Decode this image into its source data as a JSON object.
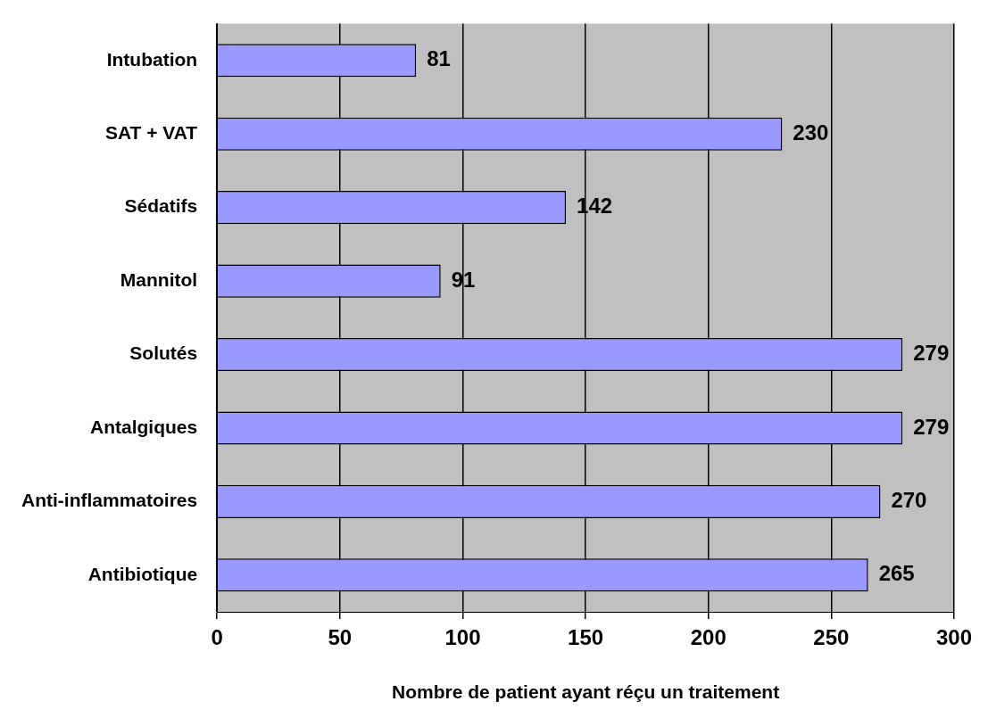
{
  "chart_data": {
    "type": "bar",
    "orientation": "horizontal",
    "xlabel": "Nombre de patient ayant réçu un traitement",
    "categories": [
      "Intubation",
      "SAT + VAT",
      "Sédatifs",
      "Mannitol",
      "Solutés",
      "Antalgiques",
      "Anti-inflammatoires",
      "Antibiotique"
    ],
    "values": [
      81,
      230,
      142,
      91,
      279,
      279,
      270,
      265
    ],
    "color": "#9999ff",
    "xlim": [
      0,
      300
    ],
    "xticks": [
      0,
      50,
      100,
      150,
      200,
      250,
      300
    ],
    "grid": "x",
    "data_labels": true,
    "legend": false
  }
}
